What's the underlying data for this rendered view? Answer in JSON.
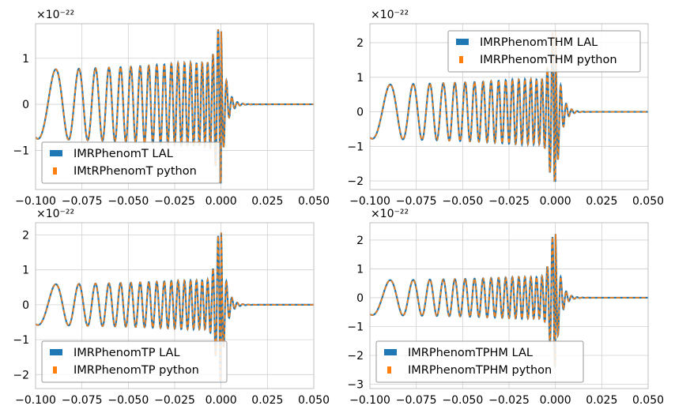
{
  "chart_data": [
    {
      "type": "line",
      "title": "",
      "xlabel": "",
      "ylabel": "",
      "xlim": [
        -0.1,
        0.05
      ],
      "ylim": [
        -1.85,
        1.75
      ],
      "xticks": [
        -0.1,
        -0.075,
        -0.05,
        -0.025,
        0.0,
        0.025,
        0.05
      ],
      "xtick_labels": [
        "−0.100",
        "−0.075",
        "−0.050",
        "−0.025",
        "0.000",
        "0.025",
        "0.050"
      ],
      "yticks": [
        -1,
        0,
        1
      ],
      "ytick_labels": [
        "−1",
        "0",
        "1"
      ],
      "y_offset_label": "×10⁻²²",
      "grid": true,
      "legend_position": "lower-left",
      "series": [
        {
          "name": "IMRPhenomT LAL",
          "color": "#1f77b4",
          "style": "solid"
        },
        {
          "name": "IMtRPhenomT python",
          "color": "#ff7f0e",
          "style": "dashed"
        }
      ],
      "waveform": {
        "inspiral_amplitude": 0.75,
        "peak_amplitude": 1.65,
        "min_value": -1.7
      }
    },
    {
      "type": "line",
      "title": "",
      "xlabel": "",
      "ylabel": "",
      "xlim": [
        -0.1,
        0.05
      ],
      "ylim": [
        -2.25,
        2.55
      ],
      "xticks": [
        -0.1,
        -0.075,
        -0.05,
        -0.025,
        0.0,
        0.025,
        0.05
      ],
      "xtick_labels": [
        "−0.100",
        "−0.075",
        "−0.050",
        "−0.025",
        "0.000",
        "0.025",
        "0.050"
      ],
      "yticks": [
        -2,
        -1,
        0,
        1,
        2
      ],
      "ytick_labels": [
        "−2",
        "−1",
        "0",
        "1",
        "2"
      ],
      "y_offset_label": "×10⁻²²",
      "grid": true,
      "legend_position": "upper-right",
      "series": [
        {
          "name": "IMRPhenomTHM LAL",
          "color": "#1f77b4",
          "style": "solid"
        },
        {
          "name": "IMRPhenomTHM python",
          "color": "#ff7f0e",
          "style": "dashed"
        }
      ],
      "waveform": {
        "inspiral_amplitude": 0.78,
        "peak_amplitude": 2.45,
        "min_value": -2.0
      }
    },
    {
      "type": "line",
      "title": "",
      "xlabel": "",
      "ylabel": "",
      "xlim": [
        -0.1,
        0.05
      ],
      "ylim": [
        -2.4,
        2.35
      ],
      "xticks": [
        -0.1,
        -0.075,
        -0.05,
        -0.025,
        0.0,
        0.025,
        0.05
      ],
      "xtick_labels": [
        "−0.100",
        "−0.075",
        "−0.050",
        "−0.025",
        "0.000",
        "0.025",
        "0.050"
      ],
      "yticks": [
        -2,
        -1,
        0,
        1,
        2
      ],
      "ytick_labels": [
        "−2",
        "−1",
        "0",
        "1",
        "2"
      ],
      "y_offset_label": "×10⁻²²",
      "grid": true,
      "legend_position": "lower-left",
      "series": [
        {
          "name": "IMRPhenomTP LAL",
          "color": "#1f77b4",
          "style": "solid"
        },
        {
          "name": "IMRPhenomTP python",
          "color": "#ff7f0e",
          "style": "dashed"
        }
      ],
      "waveform": {
        "inspiral_amplitude": 0.58,
        "peak_amplitude": 2.15,
        "min_value": -2.2
      }
    },
    {
      "type": "line",
      "title": "",
      "xlabel": "",
      "ylabel": "",
      "xlim": [
        -0.1,
        0.05
      ],
      "ylim": [
        -3.15,
        2.6
      ],
      "xticks": [
        -0.1,
        -0.075,
        -0.05,
        -0.025,
        0.0,
        0.025,
        0.05
      ],
      "xtick_labels": [
        "−0.100",
        "−0.075",
        "−0.050",
        "−0.025",
        "0.000",
        "0.025",
        "0.050"
      ],
      "yticks": [
        -3,
        -2,
        -1,
        0,
        1,
        2
      ],
      "ytick_labels": [
        "−3",
        "−2",
        "−1",
        "0",
        "1",
        "2"
      ],
      "y_offset_label": "×10⁻²²",
      "grid": true,
      "legend_position": "lower-left",
      "series": [
        {
          "name": "IMRPhenomTPHM LAL",
          "color": "#1f77b4",
          "style": "solid"
        },
        {
          "name": "IMRPhenomTPHM python",
          "color": "#ff7f0e",
          "style": "dashed"
        }
      ],
      "waveform": {
        "inspiral_amplitude": 0.6,
        "peak_amplitude": 2.3,
        "min_value": -3.0
      }
    }
  ]
}
